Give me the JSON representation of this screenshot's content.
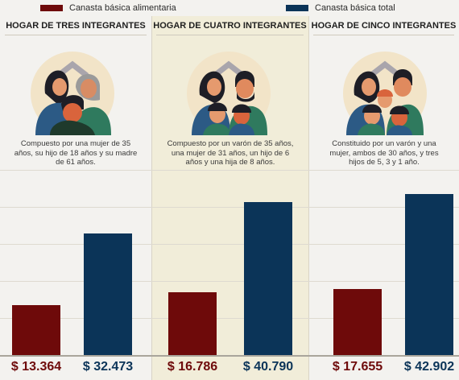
{
  "legend": {
    "alimentaria": "Canasta básica alimentaria",
    "total": "Canasta básica total"
  },
  "colors": {
    "alimentaria": "#6e0a0a",
    "total": "#0b3458",
    "highlight_column": "#f1edd9",
    "circle": "#f2e4c8"
  },
  "households": [
    {
      "title": "HOGAR DE TRES INTEGRANTES",
      "description": "Compuesto por una mujer de 35 años, su hijo de 18 años y su madre de 61 años.",
      "illustration": "family-of-three-icon"
    },
    {
      "title": "HOGAR DE CUATRO INTEGRANTES",
      "description": "Compuesto por un varón de 35 años, una mujer de 31 años, un hijo de 6 años y una hija de 8 años.",
      "illustration": "family-of-four-icon"
    },
    {
      "title": "HOGAR DE CINCO INTEGRANTES",
      "description": "Constituido por un varón y una mujer, ambos de 30 años, y tres hijos de 5, 3 y 1 año.",
      "illustration": "family-of-five-icon"
    }
  ],
  "chart_data": {
    "type": "bar",
    "categories": [
      "HOGAR DE TRES INTEGRANTES",
      "HOGAR DE CUATRO INTEGRANTES",
      "HOGAR DE CINCO INTEGRANTES"
    ],
    "series": [
      {
        "name": "Canasta básica alimentaria",
        "values": [
          13364,
          16786,
          17655
        ],
        "labels": [
          "$ 13.364",
          "$ 16.786",
          "$ 17.655"
        ]
      },
      {
        "name": "Canasta básica total",
        "values": [
          32473,
          40790,
          42902
        ],
        "labels": [
          "$ 32.473",
          "$ 40.790",
          "$ 42.902"
        ]
      }
    ],
    "ylim": [
      0,
      50000
    ],
    "grid": true,
    "legend_position": "top"
  }
}
